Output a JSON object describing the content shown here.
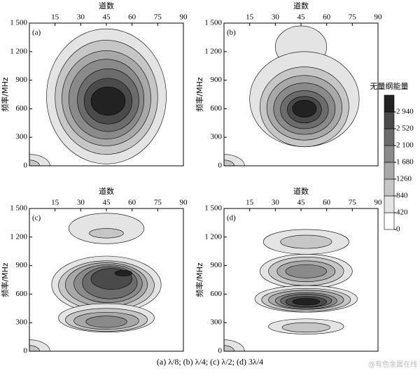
{
  "chart_data": [
    {
      "type": "contour",
      "panel": "(a)",
      "x_label": "道数",
      "y_label": "频率/MHz",
      "xlim": [
        0,
        90
      ],
      "xticks": [
        15,
        30,
        45,
        60,
        75,
        90
      ],
      "ylim": [
        0,
        1500
      ],
      "yticks": [
        0,
        300,
        600,
        900,
        {
          "value": 1200,
          "label": "1 200"
        },
        {
          "value": 1500,
          "label": "1 500"
        }
      ]
    },
    {
      "type": "contour",
      "panel": "(b)",
      "x_label": "道数",
      "y_label": "频率/MHz",
      "xlim": [
        0,
        90
      ],
      "xticks": [
        15,
        30,
        45,
        60,
        75,
        90
      ],
      "ylim": [
        0,
        1500
      ],
      "yticks": [
        0,
        300,
        600,
        900,
        {
          "value": 1200,
          "label": "1 200"
        },
        {
          "value": 1500,
          "label": "1 500"
        }
      ]
    },
    {
      "type": "contour",
      "panel": "(c)",
      "x_label": "道数",
      "y_label": "频率/MHz",
      "xlim": [
        0,
        90
      ],
      "xticks": [
        15,
        30,
        45,
        60,
        75,
        90
      ],
      "ylim": [
        0,
        1500
      ],
      "yticks": [
        0,
        300,
        600,
        900,
        {
          "value": 1200,
          "label": "1 200"
        },
        {
          "value": 1500,
          "label": "1 500"
        }
      ]
    },
    {
      "type": "contour",
      "panel": "(d)",
      "x_label": "道数",
      "y_label": "频率/MHz",
      "xlim": [
        0,
        90
      ],
      "xticks": [
        15,
        30,
        45,
        60,
        75,
        90
      ],
      "ylim": [
        0,
        1500
      ],
      "yticks": [
        0,
        300,
        600,
        900,
        {
          "value": 1200,
          "label": "1 200"
        },
        {
          "value": 1500,
          "label": "1 500"
        }
      ]
    }
  ],
  "colorbar": {
    "title": "无量纲能量",
    "lim": [
      0,
      3360
    ],
    "ticks": [
      0,
      420,
      840,
      1260,
      {
        "value": 1680,
        "label": "1 680"
      },
      {
        "value": 2100,
        "label": "2 100"
      },
      {
        "value": 2520,
        "label": "2 520"
      },
      {
        "value": 2940,
        "label": "2 940"
      }
    ],
    "colors": [
      "#ffffff",
      "#e4e4e4",
      "#c6c6c6",
      "#a8a8a8",
      "#8a8a8a",
      "#6c6c6c",
      "#4a4a4a",
      "#222222"
    ]
  },
  "caption": "(a) λ/8; (b) λ/4; (c) λ/2; (d) 3λ/4",
  "watermark": "@有色金属在线"
}
